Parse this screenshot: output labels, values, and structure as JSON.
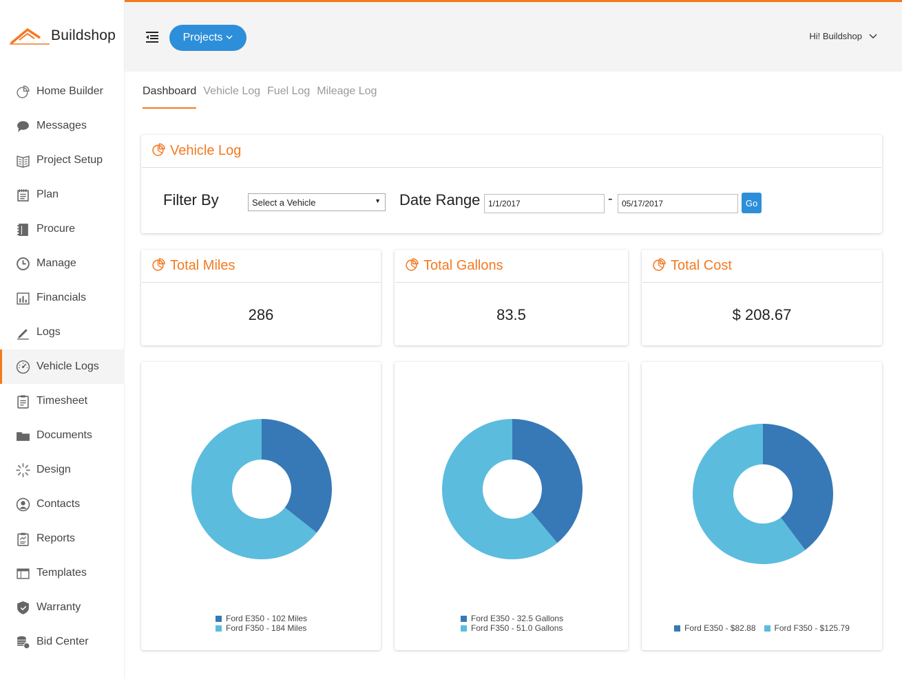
{
  "brand": {
    "name": "Buildshop"
  },
  "sidebar": {
    "items": [
      {
        "label": "Home Builder",
        "icon": "pie-chart-icon"
      },
      {
        "label": "Messages",
        "icon": "chat-bubble-icon"
      },
      {
        "label": "Project Setup",
        "icon": "book-icon"
      },
      {
        "label": "Plan",
        "icon": "notepad-icon"
      },
      {
        "label": "Procure",
        "icon": "notebook-icon"
      },
      {
        "label": "Manage",
        "icon": "clock-icon"
      },
      {
        "label": "Financials",
        "icon": "bar-chart-icon"
      },
      {
        "label": "Logs",
        "icon": "pencil-icon"
      },
      {
        "label": "Vehicle Logs",
        "icon": "speedometer-icon",
        "active": true
      },
      {
        "label": "Timesheet",
        "icon": "clipboard-icon"
      },
      {
        "label": "Documents",
        "icon": "folder-icon"
      },
      {
        "label": "Design",
        "icon": "spinner-icon"
      },
      {
        "label": "Contacts",
        "icon": "user-circle-icon"
      },
      {
        "label": "Reports",
        "icon": "report-icon"
      },
      {
        "label": "Templates",
        "icon": "window-icon"
      },
      {
        "label": "Warranty",
        "icon": "shield-icon"
      },
      {
        "label": "Bid Center",
        "icon": "coins-icon"
      }
    ]
  },
  "header": {
    "projects_label": "Projects",
    "user_greeting": "Hi! Buildshop"
  },
  "tabs": [
    {
      "label": "Dashboard",
      "active": true
    },
    {
      "label": "Vehicle Log"
    },
    {
      "label": "Fuel Log"
    },
    {
      "label": "Mileage Log"
    }
  ],
  "vehicle_log": {
    "title": "Vehicle Log",
    "filter_label": "Filter By",
    "select_value": "Select a Vehicle",
    "date_range_label": "Date Range",
    "date_from": "1/1/2017",
    "date_sep": "-",
    "date_to": "05/17/2017",
    "go_label": "Go"
  },
  "stats": {
    "miles": {
      "title": "Total Miles",
      "value": "286"
    },
    "gallons": {
      "title": "Total Gallons",
      "value": "83.5"
    },
    "cost": {
      "title": "Total Cost",
      "value": "$ 208.67"
    }
  },
  "colors": {
    "accent": "#f47920",
    "primary": "#2d8fd9",
    "series_dark": "#3679b6",
    "series_light": "#5bbcde"
  },
  "chart_data": [
    {
      "type": "pie",
      "categories": [
        "Ford E350 - 102 Miles",
        "Ford F350 - 184 Miles"
      ],
      "values": [
        102,
        184
      ],
      "colors": [
        "#3679b6",
        "#5bbcde"
      ]
    },
    {
      "type": "pie",
      "categories": [
        "Ford E350 - 32.5 Gallons",
        "Ford F350 - 51.0 Gallons"
      ],
      "values": [
        32.5,
        51.0
      ],
      "colors": [
        "#3679b6",
        "#5bbcde"
      ]
    },
    {
      "type": "pie",
      "categories": [
        "Ford E350 - $82.88",
        "Ford F350 - $125.79"
      ],
      "values": [
        82.88,
        125.79
      ],
      "colors": [
        "#3679b6",
        "#5bbcde"
      ]
    }
  ]
}
